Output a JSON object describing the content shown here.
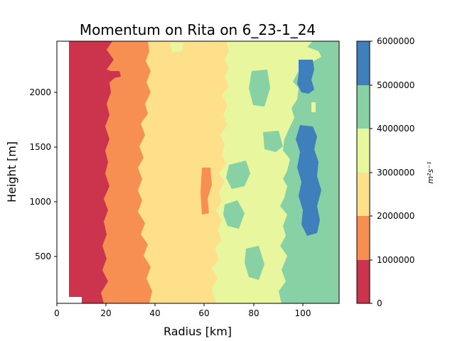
{
  "chart_data": {
    "type": "contourf",
    "title": "Momentum on Rita on 6_23-1_24",
    "xlabel": "Radius [km]",
    "ylabel": "Height [m]",
    "xlim": [
      0,
      115
    ],
    "ylim": [
      75,
      2450
    ],
    "x_ticks": [
      "0",
      "20",
      "40",
      "60",
      "80",
      "100"
    ],
    "y_ticks": [
      "500",
      "1000",
      "1500",
      "2000"
    ],
    "colorbar": {
      "label": "m²s⁻¹",
      "levels": [
        0,
        1000000,
        2000000,
        3000000,
        4000000,
        5000000,
        6000000
      ],
      "tick_labels": [
        "0",
        "1000000",
        "2000000",
        "3000000",
        "4000000",
        "5000000",
        "6000000"
      ],
      "colors": [
        "#cc334d",
        "#f88f52",
        "#fee08b",
        "#e8f79e",
        "#88d1a4",
        "#3f7fbb"
      ]
    },
    "regions": [
      {
        "level_band": "0-1000000",
        "approx_radius_km": [
          5,
          20
        ]
      },
      {
        "level_band": "1000000-2000000",
        "approx_radius_km": [
          17,
          40
        ]
      },
      {
        "level_band": "2000000-3000000",
        "approx_radius_km": [
          35,
          70
        ]
      },
      {
        "level_band": "3000000-4000000",
        "approx_radius_km": [
          68,
          95
        ]
      },
      {
        "level_band": "4000000-5000000",
        "approx_radius_km": [
          85,
          115
        ]
      },
      {
        "level_band": "5000000-6000000",
        "approx_radius_km": [
          97,
          107
        ]
      }
    ]
  },
  "colors": {
    "band0": "#cc334d",
    "band1": "#f88f52",
    "band2": "#fee08b",
    "band3": "#e8f79e",
    "band4": "#88d1a4",
    "band5": "#3f7fbb"
  }
}
